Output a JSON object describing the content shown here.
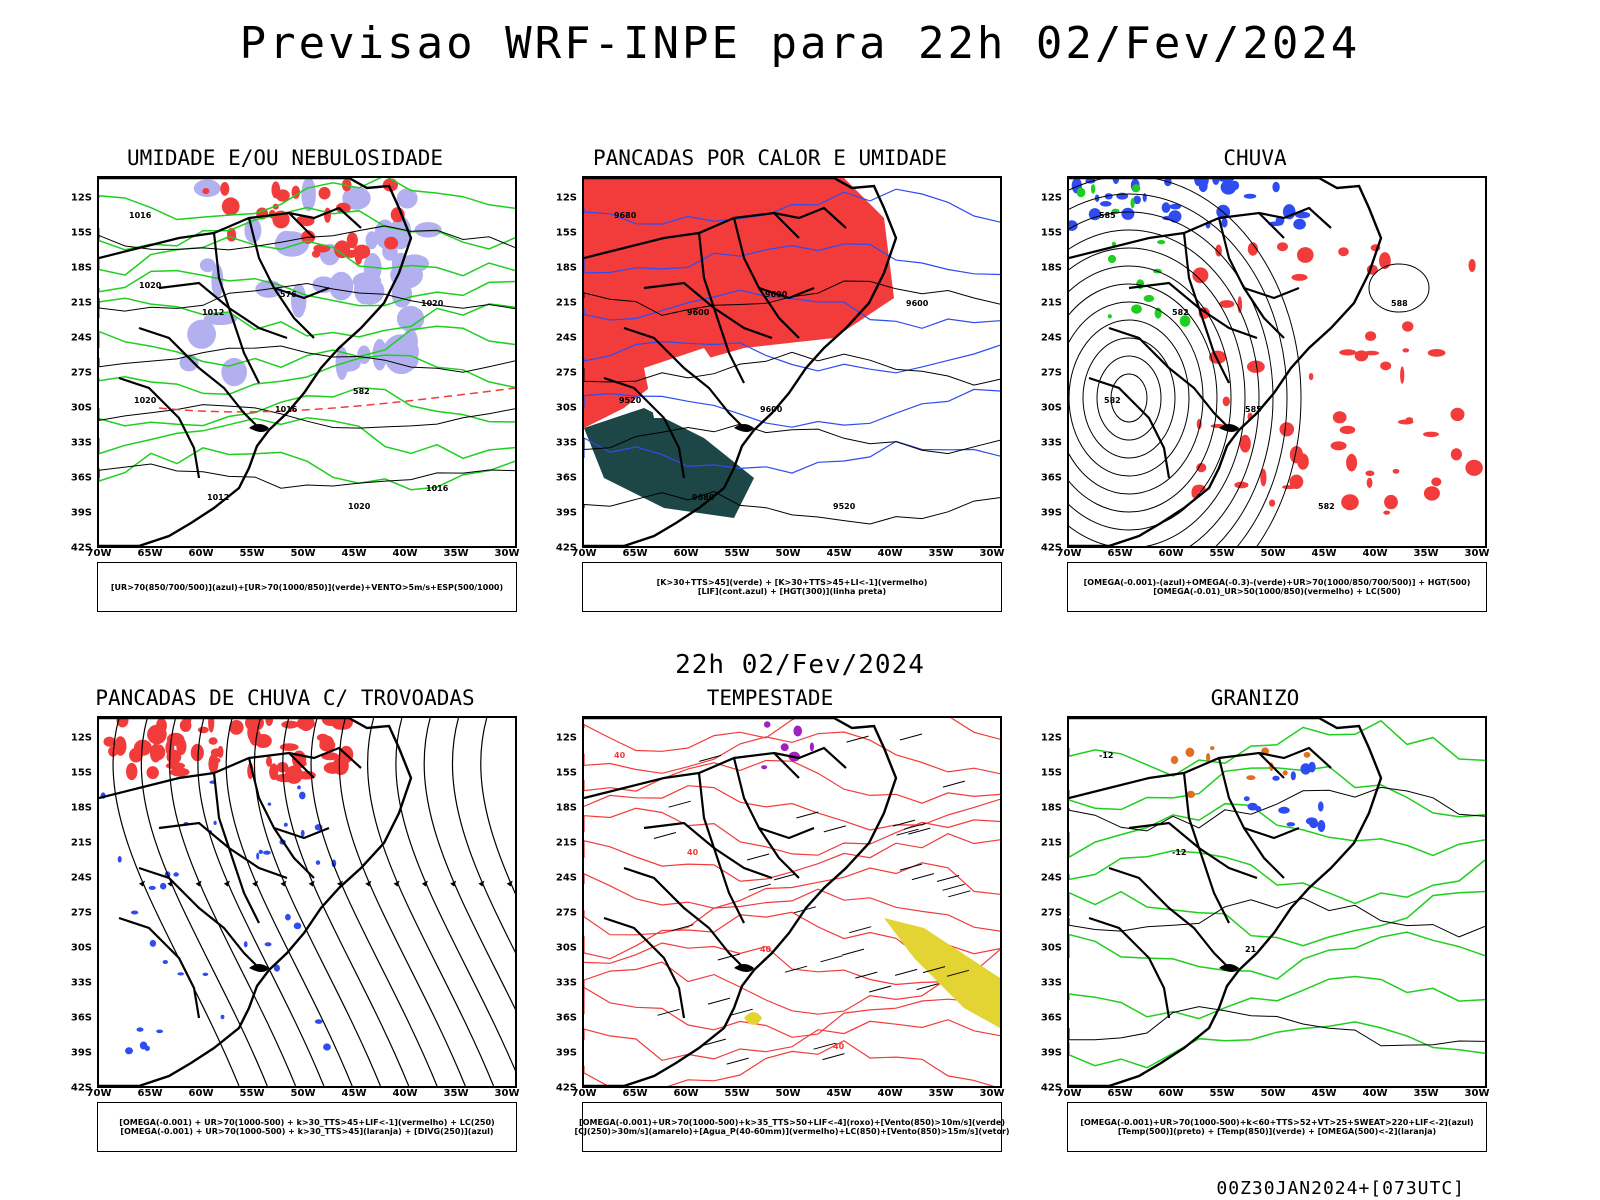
{
  "main_title": "Previsao WRF-INPE  para 22h 02/Fev/2024",
  "sub_title": "22h 02/Fev/2024",
  "footer": "00Z30JAN2024+[073UTC]",
  "lat_ticks": [
    "12S",
    "15S",
    "18S",
    "21S",
    "24S",
    "27S",
    "30S",
    "33S",
    "36S",
    "39S",
    "42S"
  ],
  "lon_ticks": [
    "70W",
    "65W",
    "60W",
    "55W",
    "50W",
    "45W",
    "40W",
    "35W",
    "30W"
  ],
  "colors": {
    "red": "#f23b3b",
    "green": "#1fcf1f",
    "blue": "#2f4cf0",
    "lavender": "#b3b0f0",
    "teal": "#1d4747",
    "yellow": "#e3d433",
    "purple": "#a020c0",
    "orange": "#e07020"
  },
  "panels": [
    {
      "title": "UMIDADE E/OU NEBULOSIDADE",
      "legend": [
        "[UR>70(850/700/500)](azul)+[UR>70(1000/850)](verde)+VENTO>5m/s+ESP(500/1000)"
      ],
      "labels": [
        "1016",
        "1012",
        "1016",
        "1020",
        "1020",
        "1020",
        "1012",
        "576",
        "582",
        "1016",
        "1020"
      ]
    },
    {
      "title": "PANCADAS POR CALOR E UMIDADE",
      "legend": [
        "[K>30+TTS>45](verde) + [K>30+TTS>45+LI<-1](vermelho)",
        "[LIF](cont.azul) + [HGT(300)](linha preta)"
      ],
      "labels": [
        "9680",
        "9600",
        "9600",
        "9520",
        "9600",
        "9520",
        "9680",
        "9600"
      ]
    },
    {
      "title": "CHUVA",
      "legend": [
        "[OMEGA(-0.001)-(azul)+OMEGA(-0.3)-(verde)+UR>70(1000/850/700/500)] + HGT(500)",
        "[OMEGA(-0.01)_UR>50(1000/850)(vermelho) + LC(500)"
      ],
      "labels": [
        "585",
        "582",
        "585",
        "582",
        "588",
        "582"
      ]
    },
    {
      "title": "PANCADAS DE CHUVA C/ TROVOADAS",
      "legend": [
        "[OMEGA(-0.001) + UR>70(1000-500) + k>30_TTS>45+LIF<-1](vermelho) + LC(250)",
        "[OMEGA(-0.001) + UR>70(1000-500) + k>30_TTS>45](laranja) + [DIVG(250)](azul)"
      ],
      "labels": []
    },
    {
      "title": "TEMPESTADE",
      "legend": [
        "[OMEGA(-0.001)+UR>70(1000-500)+k>35_TTS>50+LIF<-4](roxo)+[Vento(850)>10m/s](verde)",
        "[CJ(250)>30m/s](amarelo)+[Agua_P(40-60mm)](vermelho)+LC(850)+[Vento(850)>15m/s](vetor)"
      ],
      "labels": [
        "40",
        "40",
        "40",
        "40"
      ]
    },
    {
      "title": "GRANIZO",
      "legend": [
        "[OMEGA(-0.001)+UR>70(1000-500)+k<60+TTS>52+VT>25+SWEAT>220+LIF<-2](azul)",
        "[Temp(500)](preto) + [Temp(850)](verde) + [OMEGA(500)<-2](laranja)"
      ],
      "labels": [
        "-12",
        "-12",
        "21"
      ]
    }
  ]
}
